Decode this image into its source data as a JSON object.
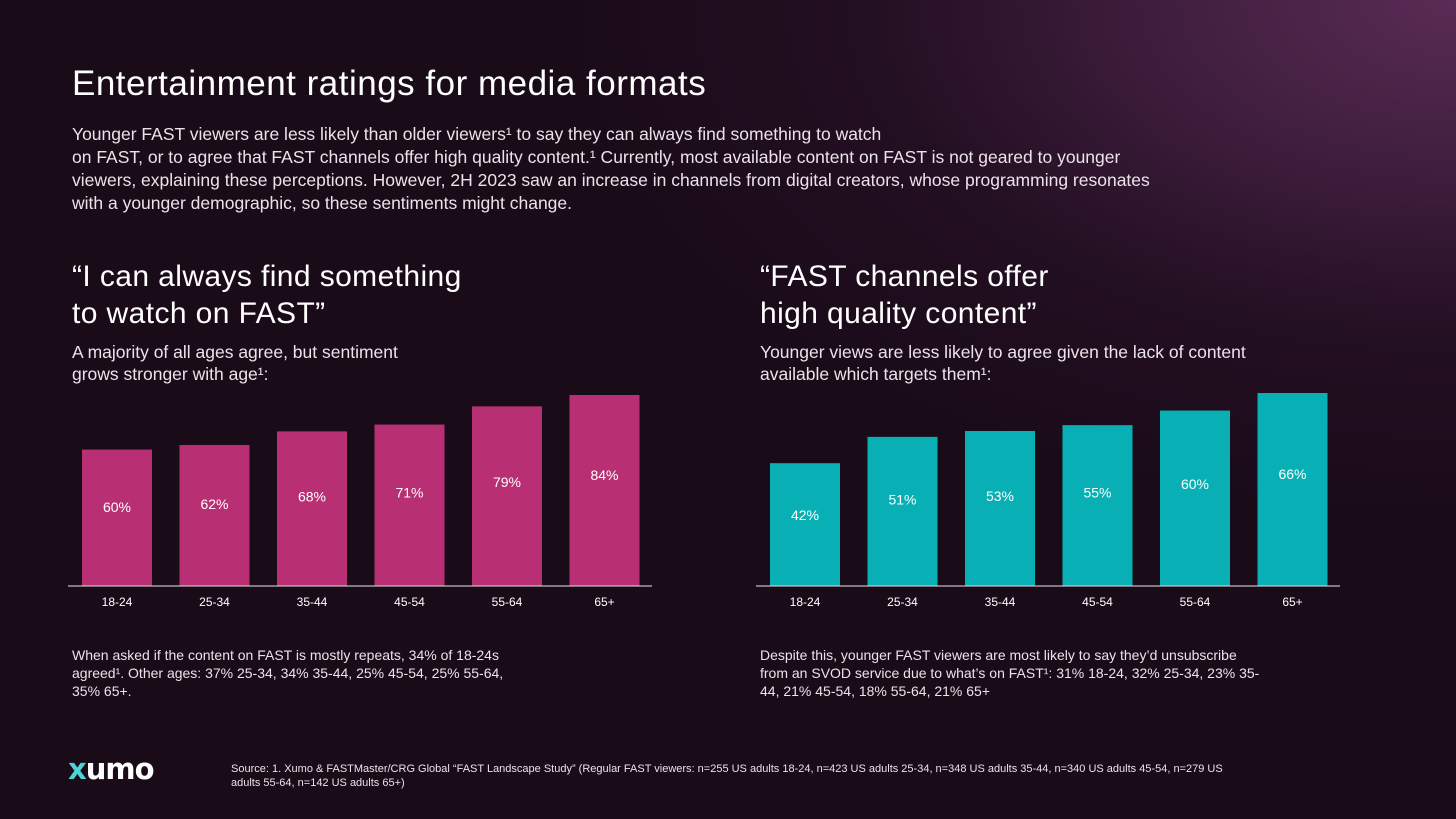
{
  "header": {
    "title": "Entertainment ratings for media formats",
    "intro_lines": [
      "Younger FAST viewers are less likely than older viewers¹ to say they can always find something to watch",
      "on FAST, or to agree that FAST channels offer high quality content.¹ Currently, most available content on FAST is not geared to younger",
      "viewers, explaining these perceptions. However, 2H 2023 saw an increase in channels from digital creators, whose programming resonates",
      "with a younger demographic, so these sentiments might change."
    ]
  },
  "left_panel": {
    "quote_lines": [
      "“I can always find something",
      "to watch on FAST”"
    ],
    "sub_lines": [
      "A majority of all ages agree, but sentiment",
      "grows stronger with age¹:"
    ],
    "note_lines": [
      "When asked if the content on FAST is mostly repeats, 34% of 18-24s",
      "agreed¹. Other ages: 37% 25-34, 34% 35-44, 25% 45-54, 25% 55-64,",
      "35% 65+."
    ]
  },
  "right_panel": {
    "quote_lines": [
      "“FAST channels offer",
      "high quality content”"
    ],
    "sub_lines": [
      "Younger views are less likely to agree given the lack of content",
      "available which targets them¹:"
    ],
    "note_lines": [
      "Despite this, younger FAST viewers are most likely to say they’d unsubscribe",
      "from an SVOD service due to what’s on FAST¹: 31% 18-24, 32% 25-34, 23% 35-",
      "44, 21% 45-54, 18% 55-64, 21% 65+"
    ]
  },
  "chart_data": [
    {
      "type": "bar",
      "categories": [
        "18-24",
        "25-34",
        "35-44",
        "45-54",
        "55-64",
        "65+"
      ],
      "values": [
        60,
        62,
        68,
        71,
        79,
        84
      ],
      "labels": [
        "60%",
        "62%",
        "68%",
        "71%",
        "79%",
        "84%"
      ],
      "color": "#b92f74"
    },
    {
      "type": "bar",
      "categories": [
        "18-24",
        "25-34",
        "35-44",
        "45-54",
        "55-64",
        "65+"
      ],
      "values": [
        42,
        51,
        53,
        55,
        60,
        66
      ],
      "labels": [
        "42%",
        "51%",
        "53%",
        "55%",
        "60%",
        "66%"
      ],
      "color": "#08b0b5"
    }
  ],
  "footer": {
    "logo_text": "xumo",
    "source_lines": [
      "Source: 1. Xumo & FASTMaster/CRG Global “FAST Landscape Study” (Regular FAST viewers: n=255 US adults 18-24, n=423 US adults 25-34, n=348 US adults 35-44, n=340 US adults 45-54, n=279 US",
      "adults 55-64, n=142 US adults 65+)"
    ]
  }
}
